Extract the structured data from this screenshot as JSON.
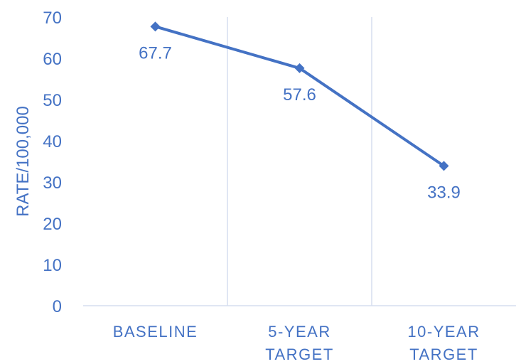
{
  "chart_data": {
    "type": "line",
    "categories": [
      "BASELINE",
      "5-YEAR TARGET",
      "10-YEAR TARGET"
    ],
    "category_lines": [
      [
        "BASELINE"
      ],
      [
        "5-YEAR",
        "TARGET"
      ],
      [
        "10-YEAR",
        "TARGET"
      ]
    ],
    "series": [
      {
        "values": [
          67.7,
          57.6,
          33.9
        ]
      }
    ],
    "data_labels": [
      "67.7",
      "57.6",
      "33.9"
    ],
    "ylabel": "RATE/100,000",
    "ylim": [
      0,
      70
    ],
    "yticks": [
      0,
      10,
      20,
      30,
      40,
      50,
      60,
      70
    ],
    "grid": "vertical",
    "marker": "diamond",
    "colors": {
      "line": "#4472C4",
      "text": "#4472C4",
      "grid": "#D6DEEF",
      "axis": "#D6DEEF"
    }
  }
}
